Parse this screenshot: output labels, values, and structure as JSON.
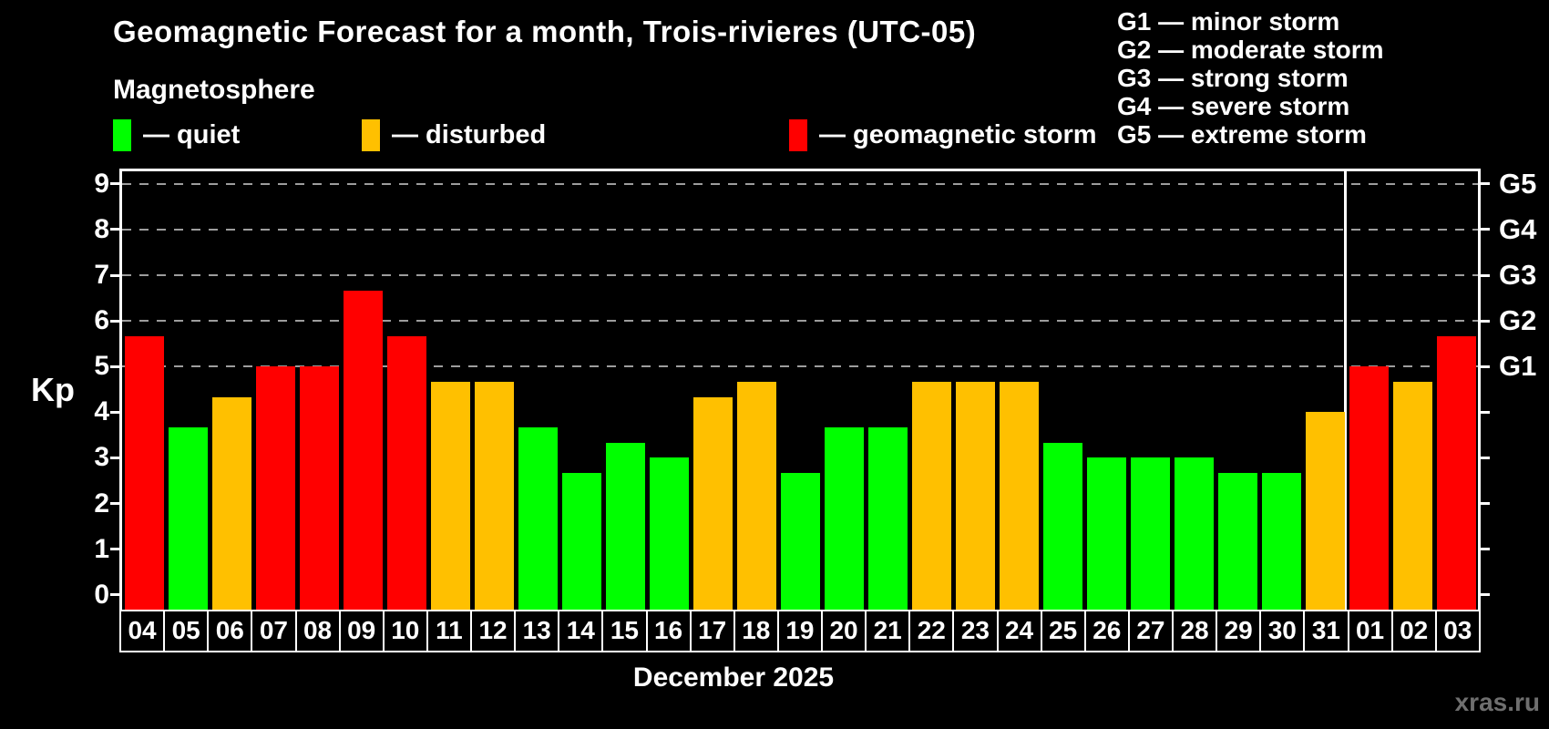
{
  "subtitle": "Magnetosphere",
  "legend": {
    "items": [
      {
        "key": "quiet",
        "label": "— quiet",
        "color": "#00ff00"
      },
      {
        "key": "disturbed",
        "label": "— disturbed",
        "color": "#ffc000"
      },
      {
        "key": "storm",
        "label": "— geomagnetic storm",
        "color": "#ff0000"
      }
    ]
  },
  "g_legend": {
    "lines": [
      "G1 — minor storm",
      "G2 — moderate storm",
      "G3 — strong storm",
      "G4 — severe storm",
      "G5 — extreme storm"
    ]
  },
  "y_axis": {
    "label": "Kp",
    "ticks": [
      0,
      1,
      2,
      3,
      4,
      5,
      6,
      7,
      8,
      9
    ]
  },
  "right_axis": {
    "ticks_at_kp": [
      0,
      1,
      2,
      3,
      4,
      5,
      6,
      7,
      8,
      9
    ],
    "labels": [
      {
        "kp": 5,
        "label": "G1"
      },
      {
        "kp": 6,
        "label": "G2"
      },
      {
        "kp": 7,
        "label": "G3"
      },
      {
        "kp": 8,
        "label": "G4"
      },
      {
        "kp": 9,
        "label": "G5"
      }
    ]
  },
  "x_axis": {
    "label": "December 2025"
  },
  "watermark": "xras.ru",
  "chart_data": {
    "type": "bar",
    "title": "Geomagnetic Forecast for a month, Trois-rivieres (UTC-05)",
    "xlabel": "December 2025",
    "ylabel": "Kp",
    "ylim": [
      0,
      9
    ],
    "grid": "dashed horizontal at Kp 5-9 only",
    "gridlines_at": [
      5,
      6,
      7,
      8,
      9
    ],
    "legend_position": "top-left",
    "month_separator_after_index": 27,
    "categories": [
      "04",
      "05",
      "06",
      "07",
      "08",
      "09",
      "10",
      "11",
      "12",
      "13",
      "14",
      "15",
      "16",
      "17",
      "18",
      "19",
      "20",
      "21",
      "22",
      "23",
      "24",
      "25",
      "26",
      "27",
      "28",
      "29",
      "30",
      "31",
      "01",
      "02",
      "03"
    ],
    "values": [
      5.67,
      3.67,
      4.33,
      5,
      5,
      6.67,
      5.67,
      4.67,
      4.67,
      3.67,
      2.67,
      3.33,
      3,
      4.33,
      4.67,
      2.67,
      3.67,
      3.67,
      4.67,
      4.67,
      4.67,
      3.33,
      3,
      3,
      3,
      2.67,
      2.67,
      4,
      5,
      4.67,
      5.67
    ],
    "statuses": [
      "storm",
      "quiet",
      "disturbed",
      "storm",
      "storm",
      "storm",
      "storm",
      "disturbed",
      "disturbed",
      "quiet",
      "quiet",
      "quiet",
      "quiet",
      "disturbed",
      "disturbed",
      "quiet",
      "quiet",
      "quiet",
      "disturbed",
      "disturbed",
      "disturbed",
      "quiet",
      "quiet",
      "quiet",
      "quiet",
      "quiet",
      "quiet",
      "disturbed",
      "storm",
      "disturbed",
      "storm"
    ],
    "status_colors": {
      "quiet": "#00ff00",
      "disturbed": "#ffc000",
      "storm": "#ff0000"
    }
  }
}
